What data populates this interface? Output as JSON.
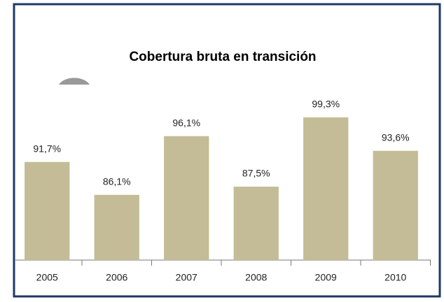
{
  "chart_data": {
    "type": "bar",
    "title": "Cobertura bruta en transición",
    "categories": [
      "2005",
      "2006",
      "2007",
      "2008",
      "2009",
      "2010"
    ],
    "values": [
      91.7,
      86.1,
      96.1,
      87.5,
      99.3,
      93.6
    ],
    "value_labels": [
      "91,7%",
      "86,1%",
      "96,1%",
      "87,5%",
      "99,3%",
      "93,6%"
    ],
    "color": "#c4bc96",
    "ylim": [
      75,
      100
    ]
  }
}
